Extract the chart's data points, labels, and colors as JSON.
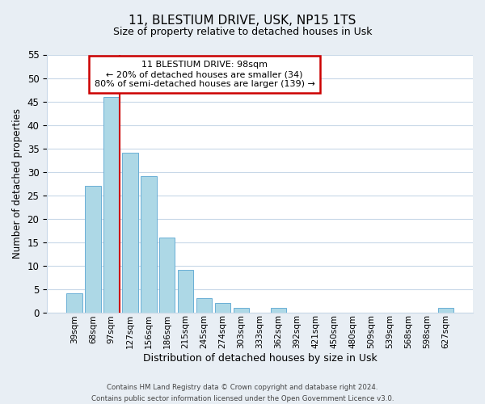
{
  "title": "11, BLESTIUM DRIVE, USK, NP15 1TS",
  "subtitle": "Size of property relative to detached houses in Usk",
  "xlabel": "Distribution of detached houses by size in Usk",
  "ylabel": "Number of detached properties",
  "bar_labels": [
    "39sqm",
    "68sqm",
    "97sqm",
    "127sqm",
    "156sqm",
    "186sqm",
    "215sqm",
    "245sqm",
    "274sqm",
    "303sqm",
    "333sqm",
    "362sqm",
    "392sqm",
    "421sqm",
    "450sqm",
    "480sqm",
    "509sqm",
    "539sqm",
    "568sqm",
    "598sqm",
    "627sqm"
  ],
  "bar_values": [
    4,
    27,
    46,
    34,
    29,
    16,
    9,
    3,
    2,
    1,
    0,
    1,
    0,
    0,
    0,
    0,
    0,
    0,
    0,
    0,
    1
  ],
  "bar_color": "#add8e6",
  "bar_edge_color": "#6aafd6",
  "ylim": [
    0,
    55
  ],
  "yticks": [
    0,
    5,
    10,
    15,
    20,
    25,
    30,
    35,
    40,
    45,
    50,
    55
  ],
  "property_line_color": "#cc0000",
  "property_line_bar_index": 2,
  "annotation_title": "11 BLESTIUM DRIVE: 98sqm",
  "annotation_line1": "← 20% of detached houses are smaller (34)",
  "annotation_line2": "80% of semi-detached houses are larger (139) →",
  "annotation_box_color": "#ffffff",
  "annotation_box_edge": "#cc0000",
  "footer_line1": "Contains HM Land Registry data © Crown copyright and database right 2024.",
  "footer_line2": "Contains public sector information licensed under the Open Government Licence v3.0.",
  "background_color": "#e8eef4",
  "plot_bg_color": "#ffffff",
  "grid_color": "#c8d8e8"
}
